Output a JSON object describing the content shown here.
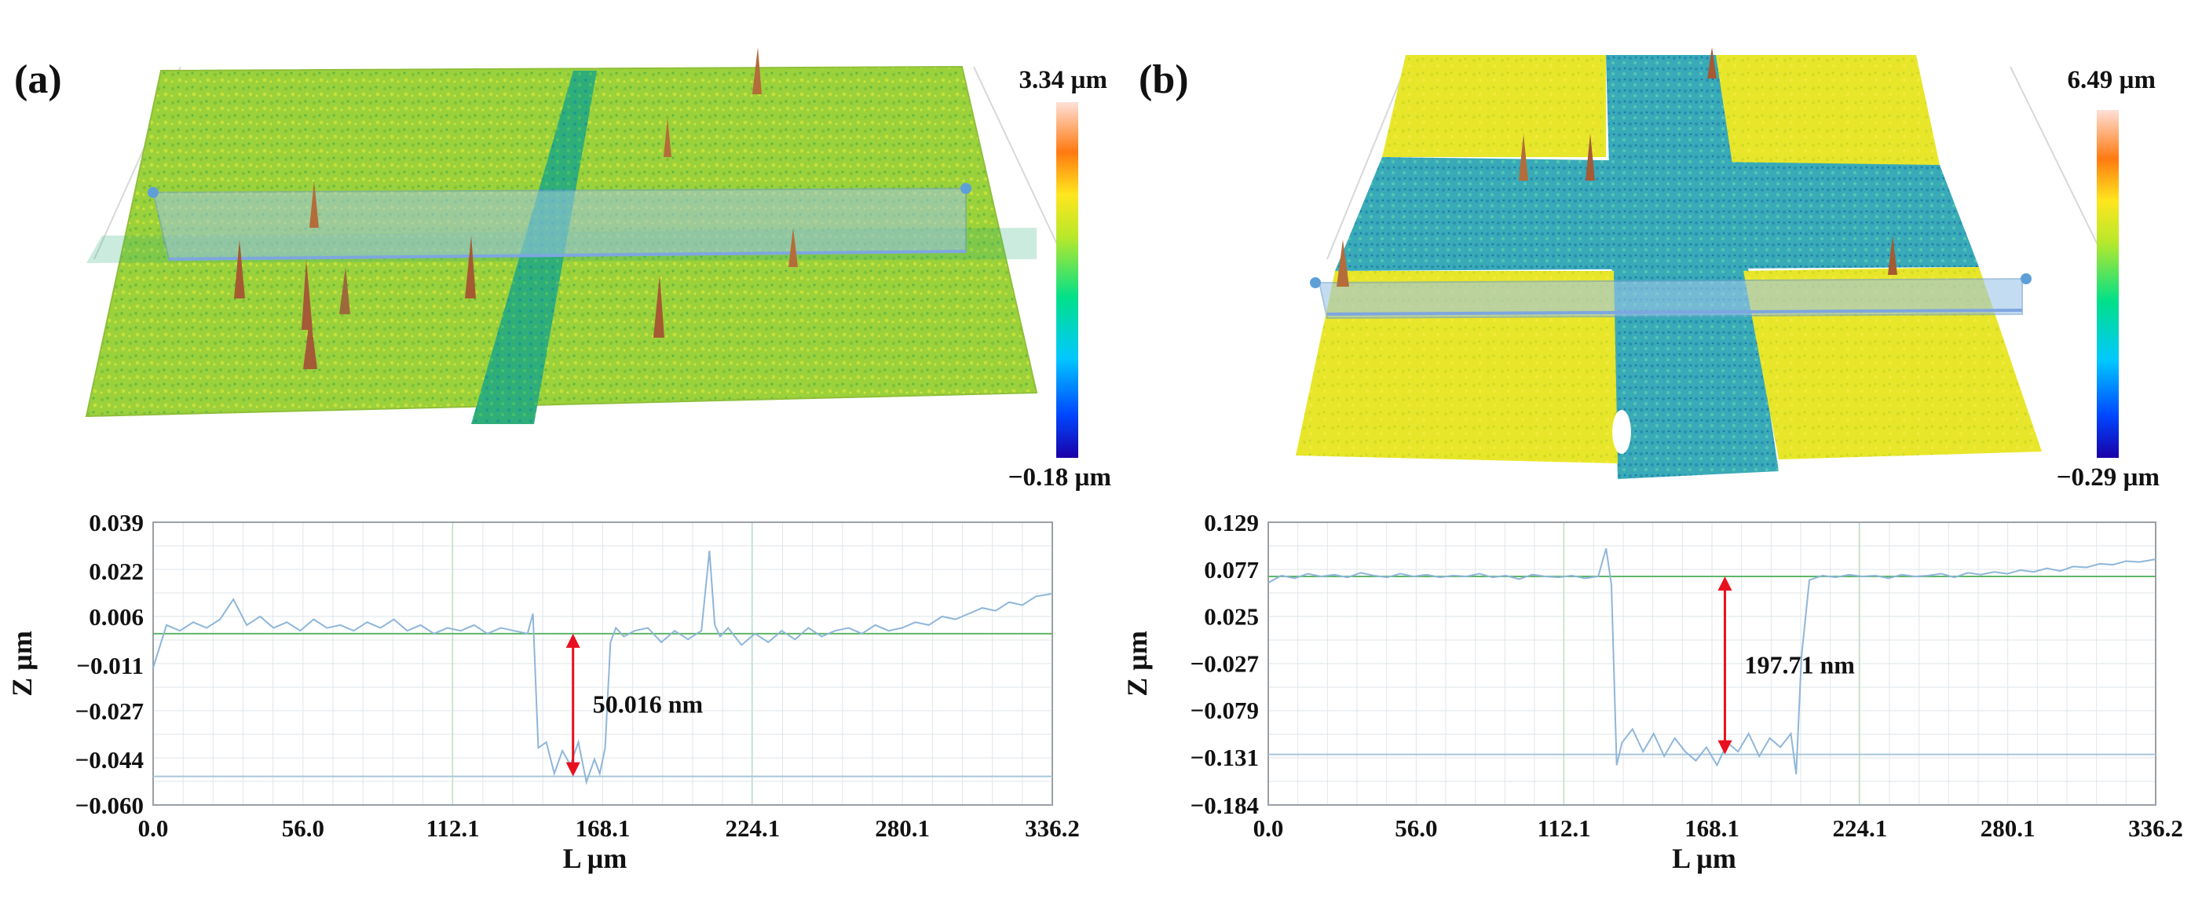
{
  "colors": {
    "profile_line": "#8fb6d9",
    "reference_line": "#5fb56a",
    "measure_arrow": "#e8101e",
    "grid": "#dfe6e9",
    "grid_major": "#bfe0c4"
  },
  "panels": [
    {
      "label": "(a)",
      "colorbar": {
        "max": "3.34 µm",
        "min": "−0.18 µm"
      },
      "surface": {
        "top_color": "#9bd13a",
        "trench_color": "#2fae7a",
        "cross": false
      }
    },
    {
      "label": "(b)",
      "colorbar": {
        "max": "6.49 µm",
        "min": "−0.29 µm"
      },
      "surface": {
        "top_color": "#e8e62a",
        "trench_color": "#38aab8",
        "cross": true
      }
    }
  ],
  "chart_data": [
    {
      "type": "line",
      "title": "",
      "xlabel": "L µm",
      "ylabel": "Z µm",
      "xlim": [
        0.0,
        336.2
      ],
      "ylim": [
        -0.06,
        0.039
      ],
      "x_ticks": [
        "0.0",
        "56.0",
        "112.1",
        "168.1",
        "224.1",
        "280.1",
        "336.2"
      ],
      "y_ticks": [
        "0.039",
        "0.022",
        "0.006",
        "−0.011",
        "−0.027",
        "−0.044",
        "−0.060"
      ],
      "y_tick_values": [
        0.039,
        0.022,
        0.006,
        -0.011,
        -0.027,
        -0.044,
        -0.06
      ],
      "reference_levels": [
        0.0,
        -0.05
      ],
      "annotation": {
        "text": "50.016 nm",
        "x": 157,
        "y_top": 0.0,
        "y_bottom": -0.05
      },
      "series": [
        {
          "name": "profile",
          "x": [
            0,
            5,
            10,
            15,
            20,
            25,
            30,
            35,
            40,
            45,
            50,
            55,
            60,
            65,
            70,
            75,
            80,
            85,
            90,
            95,
            100,
            105,
            110,
            115,
            120,
            125,
            130,
            135,
            140,
            142,
            144,
            147,
            150,
            153,
            156,
            159,
            162,
            165,
            167,
            169,
            171,
            173,
            176,
            180,
            185,
            190,
            195,
            200,
            205,
            208,
            210,
            212,
            215,
            220,
            225,
            230,
            235,
            240,
            245,
            250,
            255,
            260,
            265,
            270,
            275,
            280,
            285,
            290,
            295,
            300,
            305,
            310,
            315,
            320,
            325,
            330,
            336.2
          ],
          "values": [
            -0.012,
            0.003,
            0.001,
            0.004,
            0.002,
            0.005,
            0.012,
            0.003,
            0.006,
            0.002,
            0.004,
            0.001,
            0.005,
            0.002,
            0.003,
            0.001,
            0.004,
            0.002,
            0.005,
            0.001,
            0.003,
            0.0,
            0.002,
            0.001,
            0.003,
            0.0,
            0.002,
            0.001,
            0.0,
            0.007,
            -0.04,
            -0.038,
            -0.049,
            -0.041,
            -0.046,
            -0.038,
            -0.052,
            -0.044,
            -0.049,
            -0.04,
            -0.003,
            0.002,
            -0.001,
            0.001,
            0.002,
            -0.003,
            0.001,
            -0.002,
            0.001,
            0.029,
            0.003,
            -0.001,
            0.002,
            -0.004,
            0.0,
            -0.003,
            0.001,
            -0.002,
            0.002,
            -0.001,
            0.001,
            0.002,
            0.0,
            0.003,
            0.001,
            0.002,
            0.004,
            0.003,
            0.006,
            0.005,
            0.007,
            0.009,
            0.008,
            0.011,
            0.01,
            0.013,
            0.014
          ]
        }
      ]
    },
    {
      "type": "line",
      "title": "",
      "xlabel": "L µm",
      "ylabel": "Z µm",
      "xlim": [
        0.0,
        336.2
      ],
      "ylim": [
        -0.184,
        0.129
      ],
      "x_ticks": [
        "0.0",
        "56.0",
        "112.1",
        "168.1",
        "224.1",
        "280.1",
        "336.2"
      ],
      "y_ticks": [
        "0.129",
        "0.077",
        "0.025",
        "−0.027",
        "−0.079",
        "−0.131",
        "−0.184"
      ],
      "y_tick_values": [
        0.129,
        0.077,
        0.025,
        -0.027,
        -0.079,
        -0.131,
        -0.184
      ],
      "reference_levels": [
        0.069,
        -0.128
      ],
      "annotation": {
        "text": "197.71 nm",
        "x": 173,
        "y_top": 0.069,
        "y_bottom": -0.128
      },
      "series": [
        {
          "name": "profile",
          "x": [
            0,
            5,
            10,
            15,
            20,
            25,
            30,
            35,
            40,
            45,
            50,
            55,
            60,
            65,
            70,
            75,
            80,
            85,
            90,
            95,
            100,
            105,
            110,
            115,
            120,
            125,
            128,
            130,
            132,
            134,
            138,
            142,
            146,
            150,
            154,
            158,
            162,
            166,
            170,
            174,
            178,
            182,
            186,
            190,
            194,
            198,
            200,
            202,
            205,
            210,
            215,
            220,
            225,
            230,
            235,
            240,
            245,
            250,
            255,
            260,
            265,
            270,
            275,
            280,
            285,
            290,
            295,
            300,
            305,
            310,
            315,
            320,
            325,
            330,
            336.2
          ],
          "values": [
            0.062,
            0.07,
            0.067,
            0.072,
            0.069,
            0.071,
            0.068,
            0.073,
            0.07,
            0.068,
            0.072,
            0.069,
            0.071,
            0.068,
            0.07,
            0.069,
            0.072,
            0.068,
            0.07,
            0.066,
            0.071,
            0.069,
            0.068,
            0.07,
            0.067,
            0.069,
            0.1,
            0.06,
            -0.14,
            -0.115,
            -0.1,
            -0.125,
            -0.105,
            -0.13,
            -0.11,
            -0.125,
            -0.135,
            -0.12,
            -0.14,
            -0.115,
            -0.125,
            -0.105,
            -0.13,
            -0.11,
            -0.12,
            -0.105,
            -0.15,
            -0.02,
            0.065,
            0.07,
            0.068,
            0.071,
            0.069,
            0.07,
            0.067,
            0.071,
            0.069,
            0.07,
            0.072,
            0.068,
            0.073,
            0.071,
            0.074,
            0.072,
            0.076,
            0.074,
            0.078,
            0.075,
            0.08,
            0.079,
            0.083,
            0.082,
            0.086,
            0.085,
            0.088
          ]
        }
      ]
    }
  ]
}
